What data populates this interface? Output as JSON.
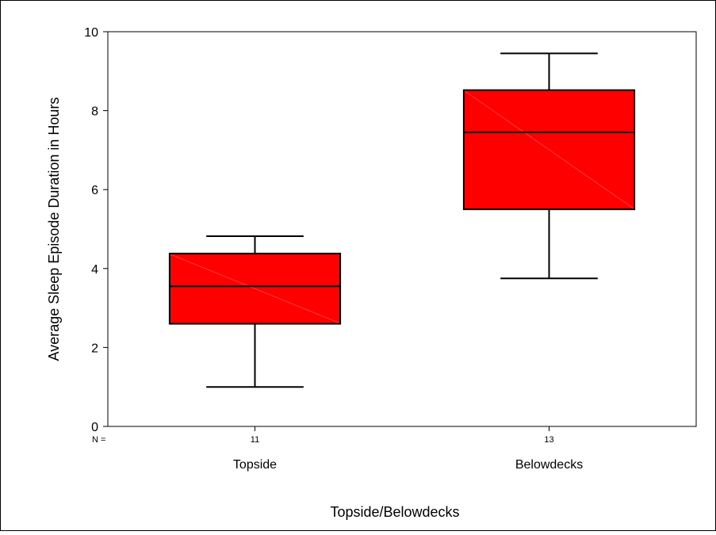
{
  "chart_data": {
    "type": "boxplot",
    "xlabel": "Topside/Belowdecks",
    "ylabel": "Average Sleep Episode Duration in Hours",
    "ylim": [
      0,
      10
    ],
    "yticks": [
      "0",
      "2",
      "4",
      "6",
      "8",
      "10"
    ],
    "n_label": "N =",
    "grid": false,
    "box_color": "#ff0000",
    "categories": [
      {
        "label": "Topside",
        "n": "11",
        "min": 1.0,
        "q1": 2.6,
        "median": 3.55,
        "q3": 4.38,
        "max": 4.82
      },
      {
        "label": "Belowdecks",
        "n": "13",
        "min": 3.75,
        "q1": 5.5,
        "median": 7.45,
        "q3": 8.52,
        "max": 9.45
      }
    ]
  }
}
